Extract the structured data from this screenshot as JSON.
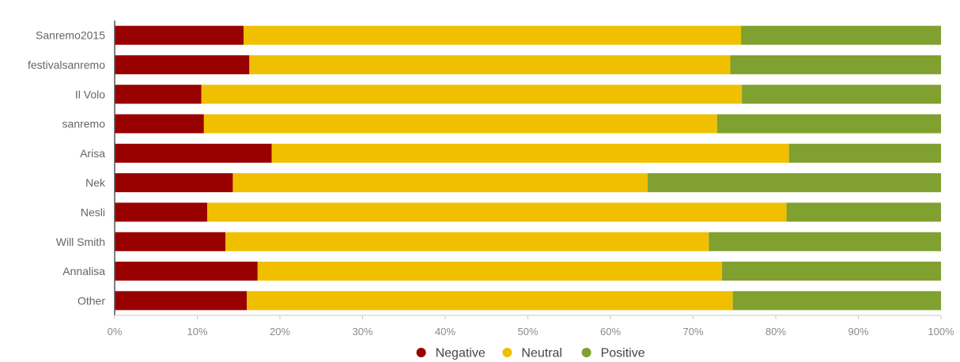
{
  "chart_data": {
    "type": "bar",
    "orientation": "horizontal",
    "stacked": true,
    "categories": [
      "Sanremo2015",
      "festivalsanremo",
      "Il Volo",
      "sanremo",
      "Arisa",
      "Nek",
      "Nesli",
      "Will Smith",
      "Annalisa",
      "Other"
    ],
    "series": [
      {
        "name": "Negative",
        "color": "#990000",
        "values": [
          15.6,
          16.3,
          10.5,
          10.8,
          19.0,
          14.3,
          11.2,
          13.4,
          17.3,
          16.0
        ]
      },
      {
        "name": "Neutral",
        "color": "#f0c000",
        "values": [
          60.2,
          58.2,
          65.4,
          62.1,
          62.6,
          50.2,
          70.1,
          58.5,
          56.2,
          58.8
        ]
      },
      {
        "name": "Positive",
        "color": "#80a030",
        "values": [
          24.2,
          25.5,
          24.1,
          27.1,
          18.4,
          35.5,
          18.7,
          28.1,
          26.5,
          25.2
        ]
      }
    ],
    "xlim": [
      0,
      100
    ],
    "x_ticks": [
      "0%",
      "10%",
      "20%",
      "30%",
      "40%",
      "50%",
      "60%",
      "70%",
      "80%",
      "90%",
      "100%"
    ],
    "title": "",
    "xlabel": "",
    "ylabel": "",
    "legend_position": "bottom-center",
    "grid": false
  }
}
